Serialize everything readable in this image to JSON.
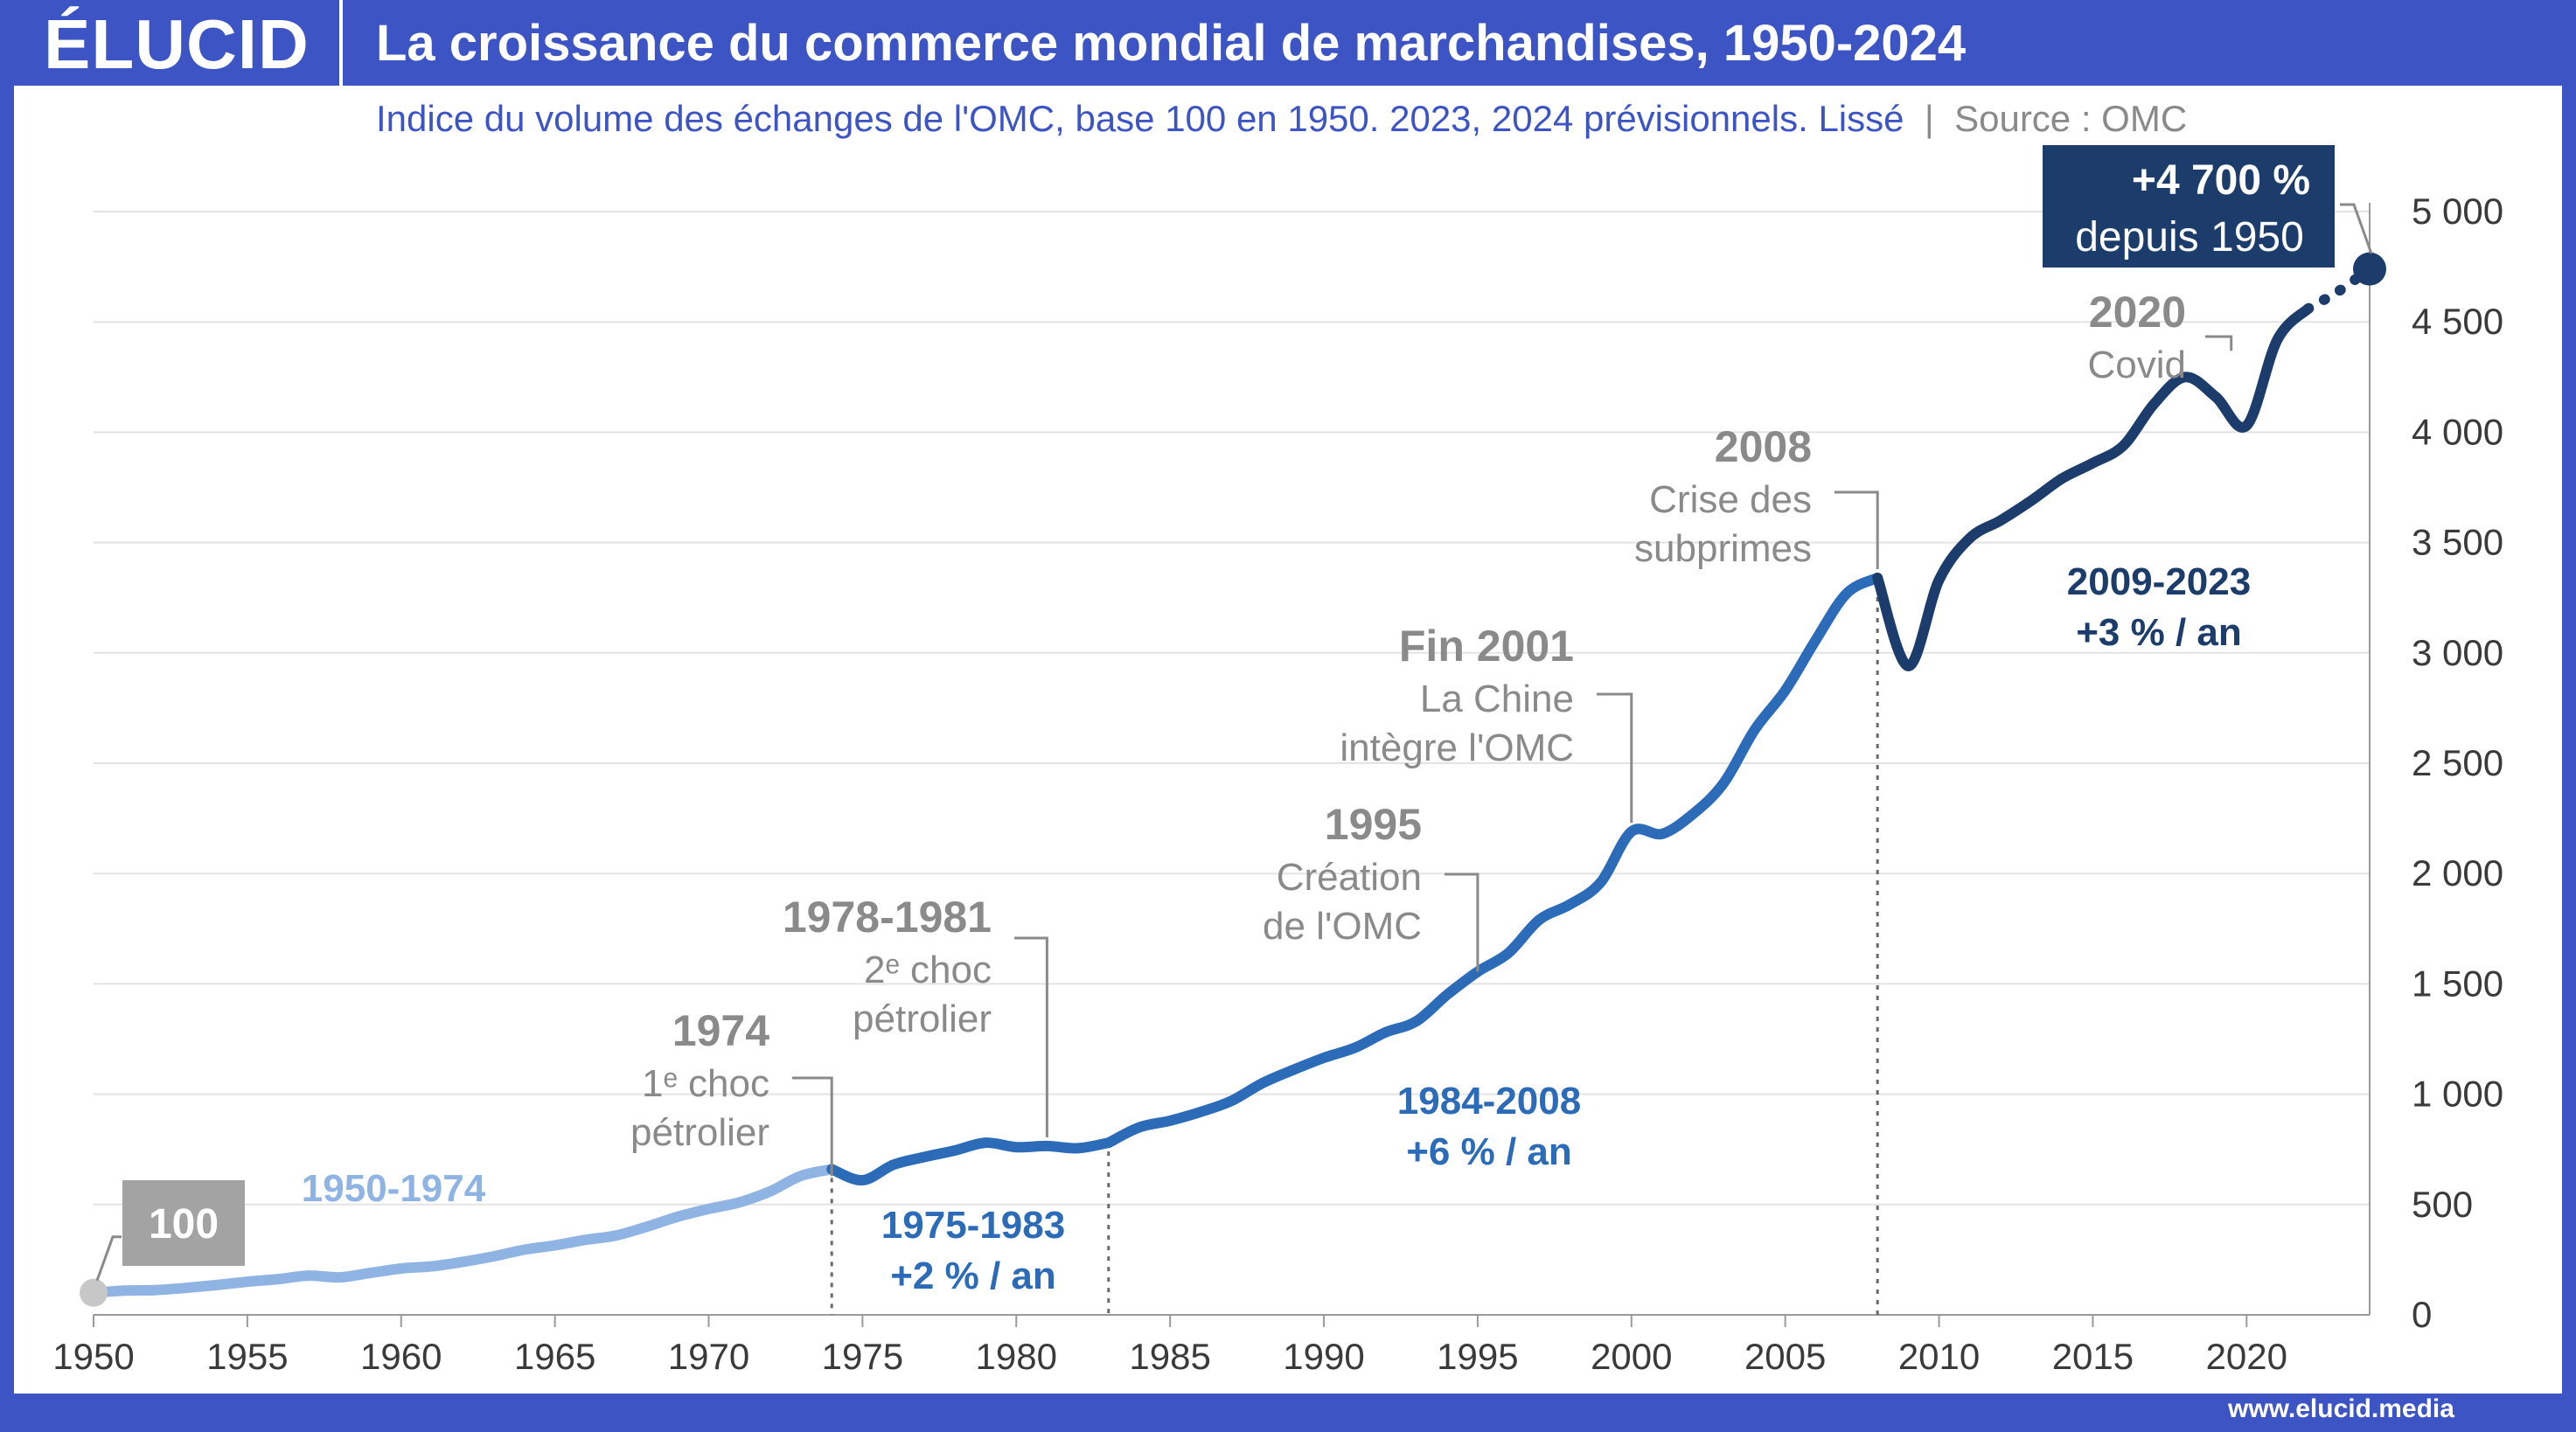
{
  "brand": {
    "logo": "ÉLUCID",
    "url": "www.elucid.media"
  },
  "header": {
    "title": "La croissance du commerce mondial de marchandises, 1950-2024",
    "subtitle": "Indice du volume des échanges de l'OMC, base 100 en 1950. 2023, 2024 prévisionnels. Lissé",
    "source": "Source : OMC"
  },
  "colors": {
    "frame": "#3d55c4",
    "light": "#8fb3e3",
    "mid": "#2c6bb8",
    "dark": "#1c3d6b",
    "annotation": "#8a8a8a"
  },
  "chart_data": {
    "type": "line",
    "title": "La croissance du commerce mondial de marchandises, 1950-2024",
    "ylim": [
      0,
      5000
    ],
    "xlim": [
      1950,
      2024
    ],
    "x_ticks": [
      "1950",
      "1955",
      "1960",
      "1965",
      "1970",
      "1975",
      "1980",
      "1985",
      "1990",
      "1995",
      "2000",
      "2005",
      "2010",
      "2015",
      "2020"
    ],
    "y_ticks": [
      "0",
      "500",
      "1 000",
      "1 500",
      "2 000",
      "2 500",
      "3 000",
      "3 500",
      "4 000",
      "4 500",
      "5 000"
    ],
    "series": [
      {
        "name": "1950-1974",
        "color": "#8fb3e3",
        "points": [
          [
            1950,
            100
          ],
          [
            1951,
            110
          ],
          [
            1952,
            112
          ],
          [
            1953,
            122
          ],
          [
            1954,
            135
          ],
          [
            1955,
            150
          ],
          [
            1956,
            162
          ],
          [
            1957,
            178
          ],
          [
            1958,
            170
          ],
          [
            1959,
            190
          ],
          [
            1960,
            210
          ],
          [
            1961,
            220
          ],
          [
            1962,
            240
          ],
          [
            1963,
            265
          ],
          [
            1964,
            295
          ],
          [
            1965,
            315
          ],
          [
            1966,
            340
          ],
          [
            1967,
            360
          ],
          [
            1968,
            400
          ],
          [
            1969,
            445
          ],
          [
            1970,
            480
          ],
          [
            1971,
            510
          ],
          [
            1972,
            560
          ],
          [
            1973,
            630
          ],
          [
            1974,
            660
          ]
        ]
      },
      {
        "name": "1975-1983",
        "color": "#2c6bb8",
        "points": [
          [
            1974,
            660
          ],
          [
            1975,
            610
          ],
          [
            1976,
            680
          ],
          [
            1977,
            715
          ],
          [
            1978,
            745
          ],
          [
            1979,
            780
          ],
          [
            1980,
            760
          ],
          [
            1981,
            765
          ],
          [
            1982,
            755
          ],
          [
            1983,
            780
          ]
        ]
      },
      {
        "name": "1984-2008",
        "color": "#2c6bb8",
        "points": [
          [
            1983,
            780
          ],
          [
            1984,
            850
          ],
          [
            1985,
            880
          ],
          [
            1986,
            920
          ],
          [
            1987,
            970
          ],
          [
            1988,
            1050
          ],
          [
            1989,
            1110
          ],
          [
            1990,
            1165
          ],
          [
            1991,
            1210
          ],
          [
            1992,
            1280
          ],
          [
            1993,
            1330
          ],
          [
            1994,
            1450
          ],
          [
            1995,
            1555
          ],
          [
            1996,
            1640
          ],
          [
            1997,
            1790
          ],
          [
            1998,
            1860
          ],
          [
            1999,
            1960
          ],
          [
            2000,
            2190
          ],
          [
            2001,
            2180
          ],
          [
            2002,
            2270
          ],
          [
            2003,
            2410
          ],
          [
            2004,
            2650
          ],
          [
            2005,
            2830
          ],
          [
            2006,
            3060
          ],
          [
            2007,
            3270
          ],
          [
            2008,
            3340
          ]
        ]
      },
      {
        "name": "2009-2023",
        "color": "#1c3d6b",
        "points": [
          [
            2008,
            3340
          ],
          [
            2009,
            2940
          ],
          [
            2010,
            3330
          ],
          [
            2011,
            3520
          ],
          [
            2012,
            3600
          ],
          [
            2013,
            3690
          ],
          [
            2014,
            3790
          ],
          [
            2015,
            3860
          ],
          [
            2016,
            3940
          ],
          [
            2017,
            4130
          ],
          [
            2018,
            4250
          ],
          [
            2019,
            4160
          ],
          [
            2020,
            4030
          ],
          [
            2021,
            4420
          ],
          [
            2022,
            4560
          ]
        ]
      },
      {
        "name": "2023-2024",
        "color": "#1c3d6b",
        "points": [
          [
            2022,
            4560
          ],
          [
            2023,
            4640
          ],
          [
            2024,
            4740
          ]
        ]
      }
    ],
    "period_labels": [
      {
        "text": "1950-1974"
      },
      {
        "text": "1975-1983",
        "rate": "+2 % / an"
      },
      {
        "text": "1984-2008",
        "rate": "+6 % / an"
      },
      {
        "text": "2009-2023",
        "rate": "+3 % / an"
      }
    ],
    "annotations": [
      {
        "year": "1974",
        "line1": "1ᵉ choc",
        "line2": "pétrolier"
      },
      {
        "year": "1978-1981",
        "line1": "2ᵉ choc",
        "line2": "pétrolier"
      },
      {
        "year": "1995",
        "line1": "Création",
        "line2": "de l'OMC"
      },
      {
        "year": "Fin 2001",
        "line1": "La Chine",
        "line2": "intègre l'OMC"
      },
      {
        "year": "2008",
        "line1": "Crise des",
        "line2": "subprimes"
      },
      {
        "year": "2020",
        "line1": "Covid",
        "line2": ""
      }
    ],
    "start_label": "100",
    "end_label": {
      "line1": "+4 700 %",
      "line2": "depuis 1950"
    }
  }
}
